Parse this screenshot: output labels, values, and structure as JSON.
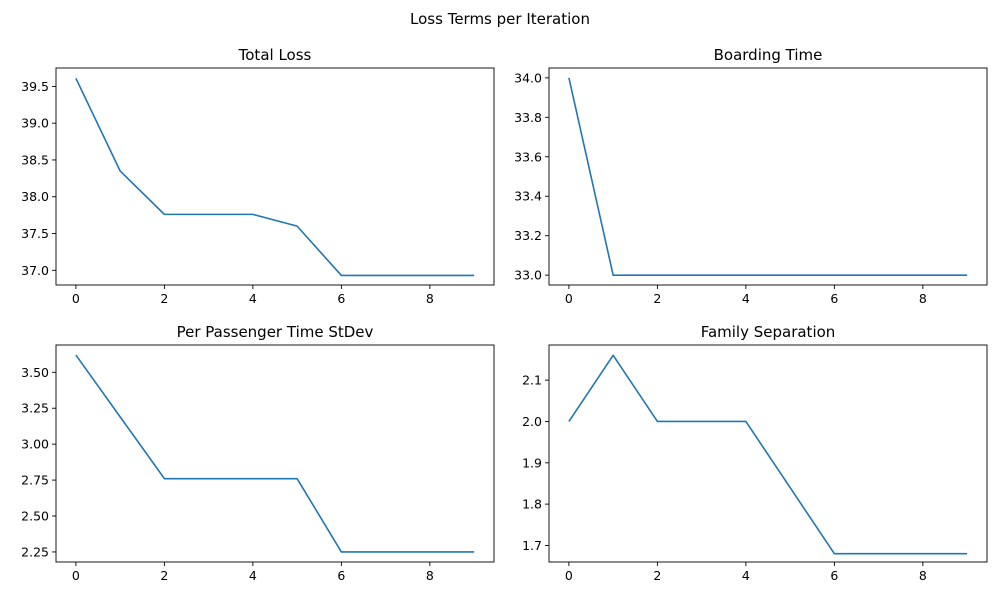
{
  "figure": {
    "title": "Loss Terms per Iteration",
    "line_color": "#1f77b4"
  },
  "chart_data": [
    {
      "type": "line",
      "title": "Total Loss",
      "xlabel": "",
      "ylabel": "",
      "grid": false,
      "x": [
        0,
        1,
        2,
        3,
        4,
        5,
        6,
        7,
        8,
        9
      ],
      "series": [
        {
          "values": [
            39.61,
            38.35,
            37.76,
            37.76,
            37.76,
            37.6,
            36.93,
            36.93,
            36.93,
            36.93
          ]
        }
      ],
      "xlim": [
        -0.45,
        9.45
      ],
      "ylim": [
        36.8,
        39.75
      ],
      "xticks": [
        0,
        2,
        4,
        6,
        8
      ],
      "yticks": [
        37.0,
        37.5,
        38.0,
        38.5,
        39.0,
        39.5
      ],
      "xtick_labels": [
        "0",
        "2",
        "4",
        "6",
        "8"
      ],
      "ytick_labels": [
        "37.0",
        "37.5",
        "38.0",
        "38.5",
        "39.0",
        "39.5"
      ]
    },
    {
      "type": "line",
      "title": "Boarding Time",
      "xlabel": "",
      "ylabel": "",
      "grid": false,
      "x": [
        0,
        1,
        2,
        3,
        4,
        5,
        6,
        7,
        8,
        9
      ],
      "series": [
        {
          "values": [
            34.0,
            33.0,
            33.0,
            33.0,
            33.0,
            33.0,
            33.0,
            33.0,
            33.0,
            33.0
          ]
        }
      ],
      "xlim": [
        -0.45,
        9.45
      ],
      "ylim": [
        32.95,
        34.05
      ],
      "xticks": [
        0,
        2,
        4,
        6,
        8
      ],
      "yticks": [
        33.0,
        33.2,
        33.4,
        33.6,
        33.8,
        34.0
      ],
      "xtick_labels": [
        "0",
        "2",
        "4",
        "6",
        "8"
      ],
      "ytick_labels": [
        "33.0",
        "33.2",
        "33.4",
        "33.6",
        "33.8",
        "34.0"
      ]
    },
    {
      "type": "line",
      "title": "Per Passenger Time StDev",
      "xlabel": "",
      "ylabel": "",
      "grid": false,
      "x": [
        0,
        1,
        2,
        3,
        4,
        5,
        6,
        7,
        8,
        9
      ],
      "series": [
        {
          "values": [
            3.62,
            3.19,
            2.76,
            2.76,
            2.76,
            2.76,
            2.25,
            2.25,
            2.25,
            2.25
          ]
        }
      ],
      "xlim": [
        -0.45,
        9.45
      ],
      "ylim": [
        2.18,
        3.69
      ],
      "xticks": [
        0,
        2,
        4,
        6,
        8
      ],
      "yticks": [
        2.25,
        2.5,
        2.75,
        3.0,
        3.25,
        3.5
      ],
      "xtick_labels": [
        "0",
        "2",
        "4",
        "6",
        "8"
      ],
      "ytick_labels": [
        "2.25",
        "2.50",
        "2.75",
        "3.00",
        "3.25",
        "3.50"
      ]
    },
    {
      "type": "line",
      "title": "Family Separation",
      "xlabel": "",
      "ylabel": "",
      "grid": false,
      "x": [
        0,
        1,
        2,
        3,
        4,
        5,
        6,
        7,
        8,
        9
      ],
      "series": [
        {
          "values": [
            2.0,
            2.16,
            2.0,
            2.0,
            2.0,
            1.84,
            1.68,
            1.68,
            1.68,
            1.68
          ]
        }
      ],
      "xlim": [
        -0.45,
        9.45
      ],
      "ylim": [
        1.66,
        2.185
      ],
      "xticks": [
        0,
        2,
        4,
        6,
        8
      ],
      "yticks": [
        1.7,
        1.8,
        1.9,
        2.0,
        2.1
      ],
      "xtick_labels": [
        "0",
        "2",
        "4",
        "6",
        "8"
      ],
      "ytick_labels": [
        "1.7",
        "1.8",
        "1.9",
        "2.0",
        "2.1"
      ]
    }
  ]
}
